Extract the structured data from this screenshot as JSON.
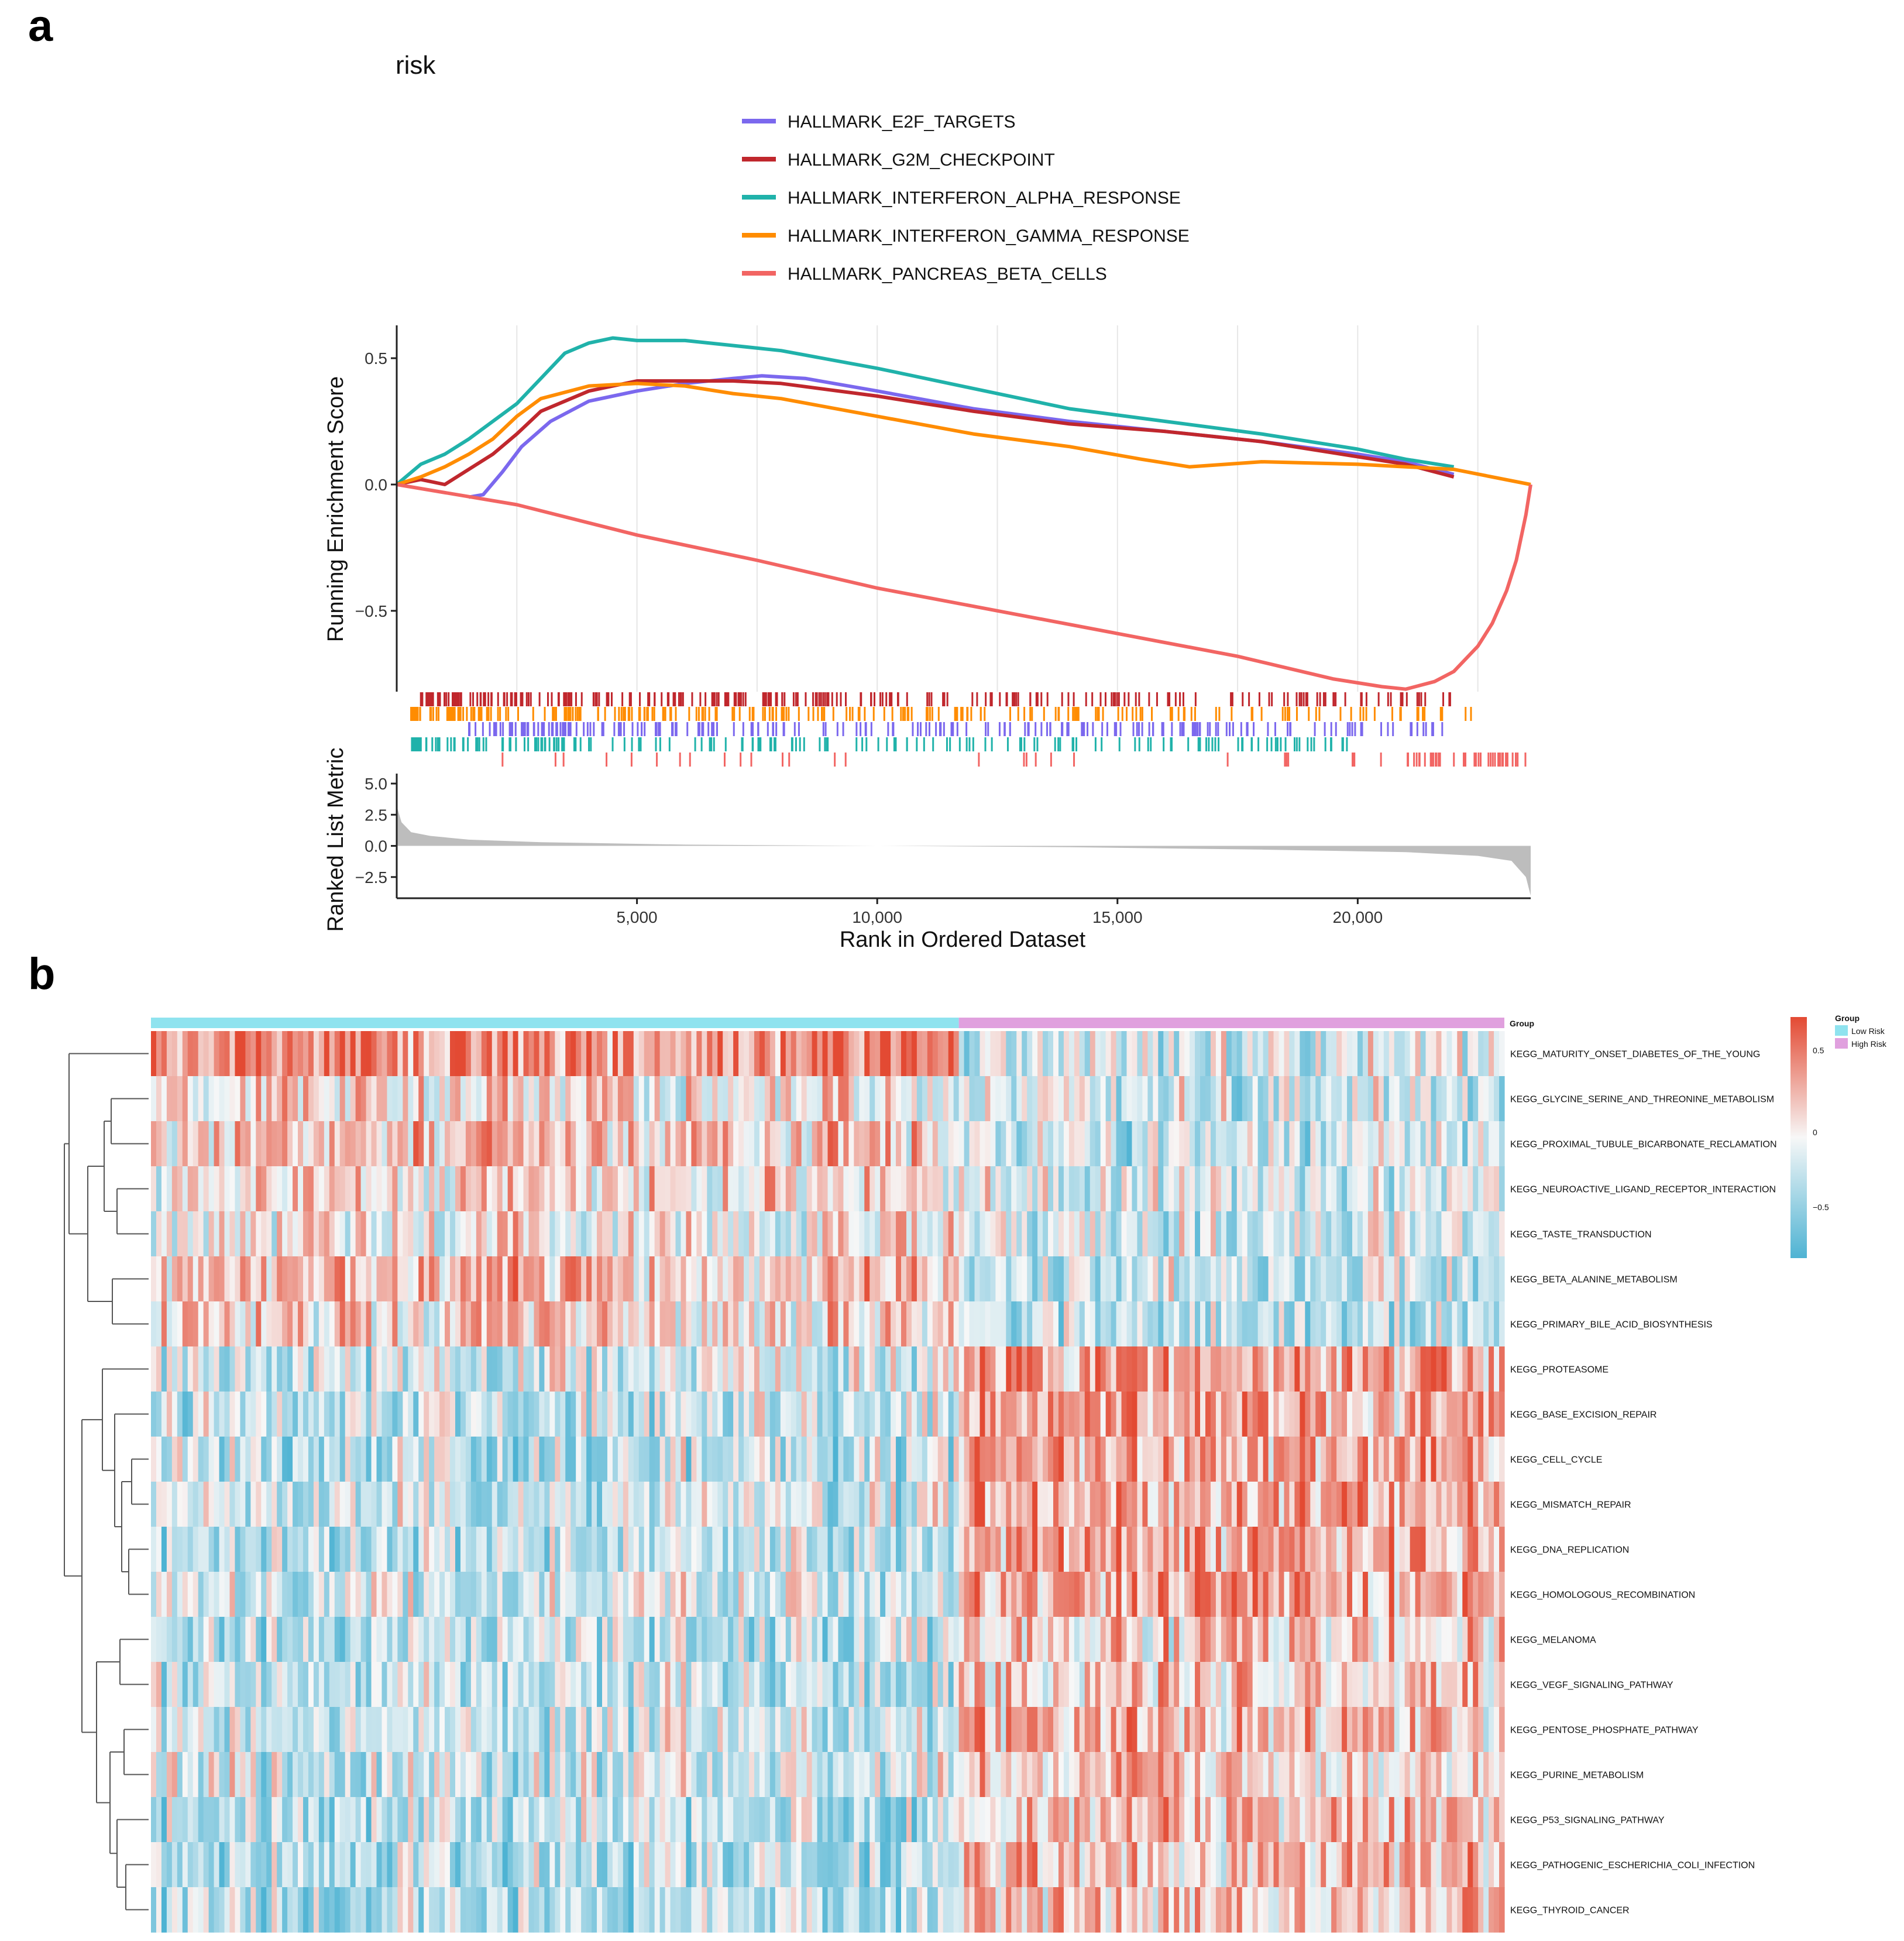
{
  "panel_a_letter": "a",
  "panel_b_letter": "b",
  "colors": {
    "e2f": "#7b68ee",
    "g2m": "#c0272d",
    "ifna": "#20b2aa",
    "ifng": "#ff8c00",
    "panc": "#f26563",
    "metric": "#bdbdbd",
    "heat_low": "#4eb3d3",
    "heat_mid": "#f7f7f7",
    "heat_high": "#e34a33",
    "group_low": "#8fe3ef",
    "group_high": "#e0a0de"
  },
  "chart_data": [
    {
      "type": "line",
      "title": "risk",
      "xlabel": "Rank in Ordered Dataset",
      "ylabel": "Running Enrichment Score",
      "xlim": [
        0,
        23600
      ],
      "ylim": [
        -0.82,
        0.63
      ],
      "xticks": [
        5000,
        10000,
        15000,
        20000
      ],
      "xtick_labels": [
        "5,000",
        "10,000",
        "15,000",
        "20,000"
      ],
      "yticks": [
        0.5,
        0.0,
        -0.5
      ],
      "ytick_labels": [
        "0.5",
        "0.0",
        "−0.5"
      ],
      "series": [
        {
          "name": "HALLMARK_E2F_TARGETS",
          "color_key": "e2f",
          "x": [
            1500,
            1800,
            2200,
            2600,
            3200,
            4000,
            5000,
            6000,
            7000,
            7600,
            8500,
            10000,
            12000,
            14000,
            16000,
            18000,
            20000,
            21000,
            21600,
            22000
          ],
          "y": [
            -0.05,
            -0.04,
            0.05,
            0.15,
            0.25,
            0.33,
            0.37,
            0.4,
            0.42,
            0.43,
            0.42,
            0.37,
            0.3,
            0.25,
            0.21,
            0.17,
            0.12,
            0.09,
            0.06,
            0.04
          ]
        },
        {
          "name": "HALLMARK_G2M_CHECKPOINT",
          "color_key": "g2m",
          "x": [
            0,
            500,
            1000,
            1500,
            2000,
            2500,
            3000,
            4000,
            5000,
            6000,
            7000,
            8000,
            10000,
            12000,
            14000,
            16000,
            18000,
            20000,
            21000,
            22000
          ],
          "y": [
            0.0,
            0.02,
            0.0,
            0.06,
            0.12,
            0.2,
            0.29,
            0.37,
            0.41,
            0.41,
            0.41,
            0.4,
            0.35,
            0.29,
            0.24,
            0.21,
            0.17,
            0.11,
            0.08,
            0.03
          ]
        },
        {
          "name": "HALLMARK_INTERFERON_ALPHA_RESPONSE",
          "color_key": "ifna",
          "x": [
            0,
            500,
            1000,
            1500,
            2000,
            2500,
            3000,
            3500,
            4000,
            4500,
            5000,
            6000,
            7000,
            8000,
            10000,
            12000,
            14000,
            16000,
            18000,
            20000,
            21000,
            22000
          ],
          "y": [
            0.0,
            0.08,
            0.12,
            0.18,
            0.25,
            0.32,
            0.42,
            0.52,
            0.56,
            0.58,
            0.57,
            0.57,
            0.55,
            0.53,
            0.46,
            0.38,
            0.3,
            0.25,
            0.2,
            0.14,
            0.1,
            0.07
          ]
        },
        {
          "name": "HALLMARK_INTERFERON_GAMMA_RESPONSE",
          "color_key": "ifng",
          "x": [
            0,
            500,
            1000,
            1500,
            2000,
            2500,
            3000,
            4000,
            5000,
            6000,
            7000,
            8000,
            10000,
            12000,
            14000,
            15500,
            16500,
            18000,
            20000,
            22000,
            23600
          ],
          "y": [
            0.0,
            0.03,
            0.07,
            0.12,
            0.18,
            0.27,
            0.34,
            0.39,
            0.4,
            0.39,
            0.36,
            0.34,
            0.27,
            0.2,
            0.15,
            0.1,
            0.07,
            0.09,
            0.08,
            0.06,
            0.0
          ]
        },
        {
          "name": "HALLMARK_PANCREAS_BETA_CELLS",
          "color_key": "panc",
          "x": [
            0,
            2500,
            5000,
            7500,
            10000,
            12500,
            15000,
            17500,
            19500,
            20500,
            21000,
            21600,
            22000,
            22500,
            22800,
            23100,
            23300,
            23500,
            23600
          ],
          "y": [
            0.0,
            -0.08,
            -0.2,
            -0.3,
            -0.41,
            -0.5,
            -0.59,
            -0.68,
            -0.77,
            -0.8,
            -0.81,
            -0.78,
            -0.74,
            -0.64,
            -0.55,
            -0.42,
            -0.3,
            -0.12,
            0.0
          ]
        }
      ]
    },
    {
      "type": "area",
      "xlabel": "Rank in Ordered Dataset",
      "ylabel": "Ranked List Metric",
      "xlim": [
        0,
        23600
      ],
      "ylim": [
        -4.2,
        5.8
      ],
      "yticks": [
        5.0,
        2.5,
        0.0,
        -2.5
      ],
      "ytick_labels": [
        "5.0",
        "2.5",
        "0.0",
        "−2.5"
      ],
      "x": [
        0,
        100,
        300,
        700,
        1500,
        3000,
        6000,
        10000,
        14000,
        18000,
        21000,
        22500,
        23200,
        23500,
        23600
      ],
      "y": [
        3.2,
        1.9,
        1.1,
        0.8,
        0.5,
        0.3,
        0.1,
        0.0,
        -0.1,
        -0.3,
        -0.5,
        -0.8,
        -1.2,
        -2.5,
        -4.0
      ]
    },
    {
      "type": "heatmap",
      "group_title": "Group",
      "group_legend": [
        "Low Risk",
        "High Risk"
      ],
      "group_counts": [
        154,
        104
      ],
      "color_scale_ticks": [
        "0.5",
        "0",
        "−0.5"
      ],
      "rows": [
        {
          "label": "KEGG_MATURITY_ONSET_DIABETES_OF_THE_YOUNG",
          "low_mean": 0.45,
          "high_mean": -0.1
        },
        {
          "label": "KEGG_GLYCINE_SERINE_AND_THREONINE_METABOLISM",
          "low_mean": 0.1,
          "high_mean": -0.1
        },
        {
          "label": "KEGG_PROXIMAL_TUBULE_BICARBONATE_RECLAMATION",
          "low_mean": 0.2,
          "high_mean": -0.15
        },
        {
          "label": "KEGG_NEUROACTIVE_LIGAND_RECEPTOR_INTERACTION",
          "low_mean": 0.1,
          "high_mean": -0.1
        },
        {
          "label": "KEGG_TASTE_TRANSDUCTION",
          "low_mean": 0.05,
          "high_mean": -0.1
        },
        {
          "label": "KEGG_BETA_ALANINE_METABOLISM",
          "low_mean": 0.2,
          "high_mean": -0.15
        },
        {
          "label": "KEGG_PRIMARY_BILE_ACID_BIOSYNTHESIS",
          "low_mean": 0.15,
          "high_mean": -0.2
        },
        {
          "label": "KEGG_PROTEASOME",
          "low_mean": -0.15,
          "high_mean": 0.35
        },
        {
          "label": "KEGG_BASE_EXCISION_REPAIR",
          "low_mean": -0.2,
          "high_mean": 0.3
        },
        {
          "label": "KEGG_CELL_CYCLE",
          "low_mean": -0.2,
          "high_mean": 0.3
        },
        {
          "label": "KEGG_MISMATCH_REPAIR",
          "low_mean": -0.15,
          "high_mean": 0.3
        },
        {
          "label": "KEGG_DNA_REPLICATION",
          "low_mean": -0.2,
          "high_mean": 0.3
        },
        {
          "label": "KEGG_HOMOLOGOUS_RECOMBINATION",
          "low_mean": -0.15,
          "high_mean": 0.3
        },
        {
          "label": "KEGG_MELANOMA",
          "low_mean": -0.2,
          "high_mean": 0.15
        },
        {
          "label": "KEGG_VEGF_SIGNALING_PATHWAY",
          "low_mean": -0.2,
          "high_mean": 0.15
        },
        {
          "label": "KEGG_PENTOSE_PHOSPHATE_PATHWAY",
          "low_mean": -0.15,
          "high_mean": 0.2
        },
        {
          "label": "KEGG_PURINE_METABOLISM",
          "low_mean": -0.15,
          "high_mean": 0.15
        },
        {
          "label": "KEGG_P53_SIGNALING_PATHWAY",
          "low_mean": -0.25,
          "high_mean": 0.2
        },
        {
          "label": "KEGG_PATHOGENIC_ESCHERICHIA_COLI_INFECTION",
          "low_mean": -0.25,
          "high_mean": 0.2
        },
        {
          "label": "KEGG_THYROID_CANCER",
          "low_mean": -0.25,
          "high_mean": 0.15
        }
      ]
    }
  ]
}
